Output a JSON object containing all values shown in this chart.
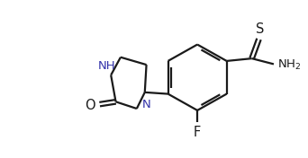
{
  "background_color": "#ffffff",
  "line_color": "#1a1a1a",
  "nh_color": "#3333aa",
  "n_color": "#3333aa",
  "line_width": 1.6,
  "figsize": [
    3.42,
    1.76
  ],
  "dpi": 100,
  "xlim": [
    0,
    9.5
  ],
  "ylim": [
    0,
    5.0
  ]
}
